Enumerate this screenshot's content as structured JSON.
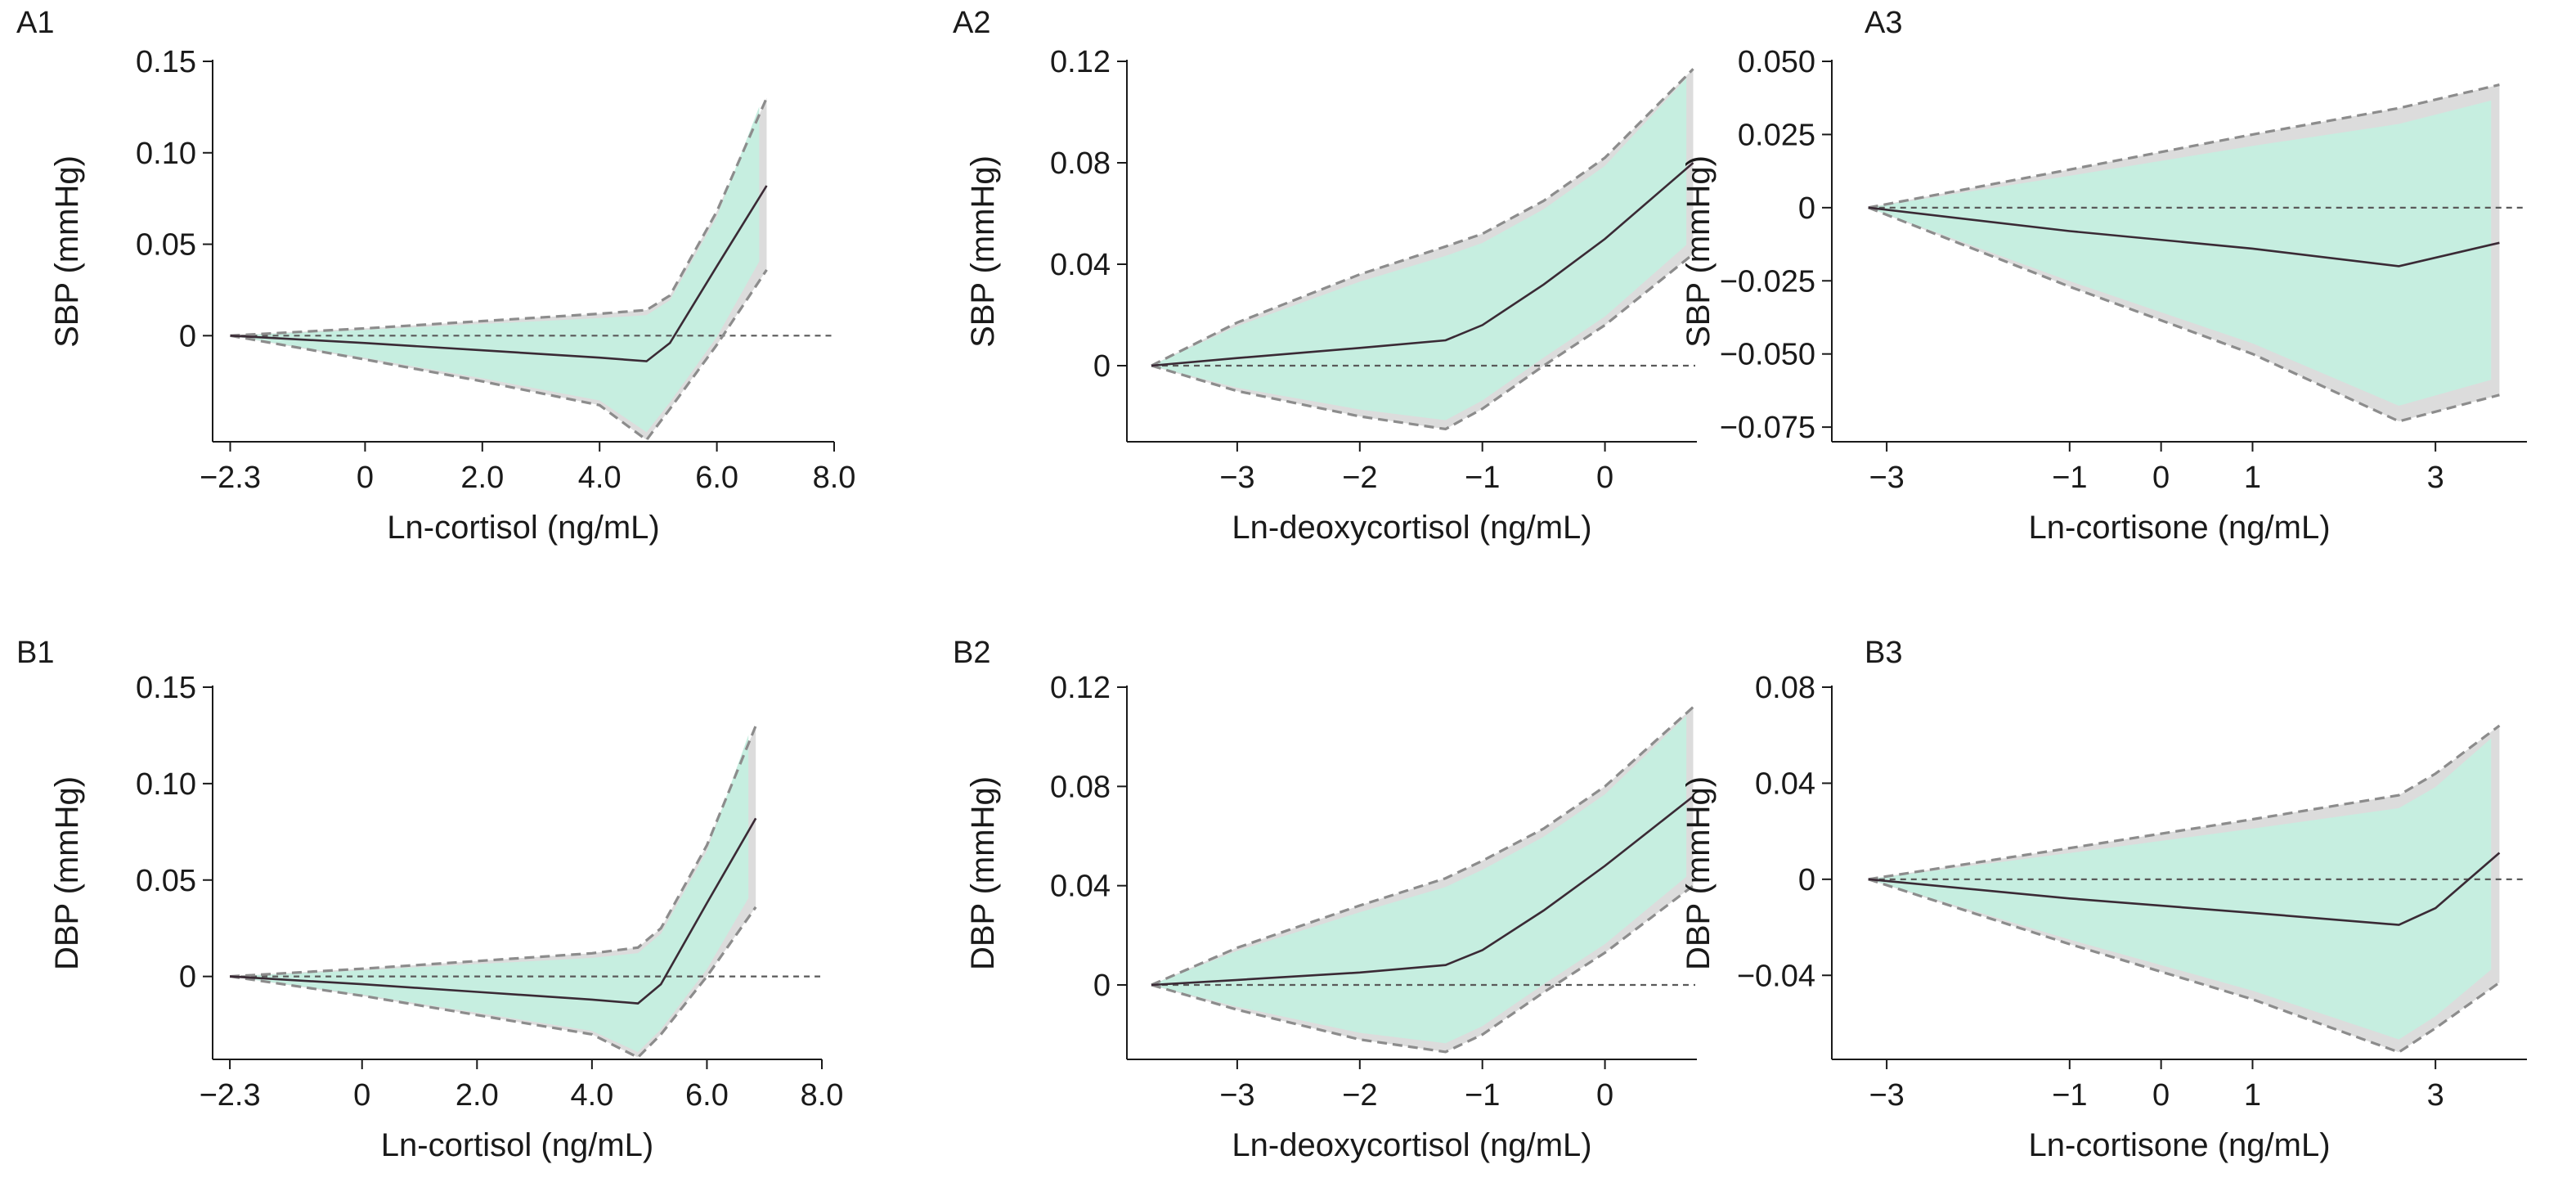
{
  "chart_data": [
    {
      "panel": "A1",
      "type": "line",
      "xlabel": "Ln-cortisol (ng/mL)",
      "ylabel": "SBP (mmHg)",
      "xlim": [
        -2.6,
        8.0
      ],
      "ylim": [
        -0.058,
        0.15
      ],
      "xticks": [
        -2.3,
        0,
        2,
        4,
        6,
        8
      ],
      "xtick_labels": [
        "−2.3",
        "0",
        "2.0",
        "4.0",
        "6.0",
        "8.0"
      ],
      "yticks": [
        0,
        0.05,
        0.1,
        0.15
      ],
      "ytick_labels": [
        "0",
        "0.05",
        "0.10",
        "0.15"
      ],
      "reference_y": 0,
      "x": [
        -2.3,
        0,
        2,
        4,
        4.8,
        5.2,
        6.0,
        6.85
      ],
      "estimate": [
        0,
        -0.004,
        -0.008,
        -0.012,
        -0.014,
        -0.004,
        0.038,
        0.082
      ],
      "lower": [
        0,
        -0.013,
        -0.025,
        -0.038,
        -0.057,
        -0.04,
        -0.005,
        0.036
      ],
      "upper": [
        0,
        0.004,
        0.008,
        0.012,
        0.014,
        0.022,
        0.068,
        0.13
      ]
    },
    {
      "panel": "A2",
      "type": "line",
      "xlabel": "Ln-deoxycortisol (ng/mL)",
      "ylabel": "SBP (mmHg)",
      "xlim": [
        -3.9,
        0.75
      ],
      "ylim": [
        -0.03,
        0.12
      ],
      "xticks": [
        -3,
        -2,
        -1,
        0
      ],
      "xtick_labels": [
        "−3",
        "−2",
        "−1",
        "0"
      ],
      "yticks": [
        0,
        0.04,
        0.08,
        0.12
      ],
      "ytick_labels": [
        "0",
        "0.04",
        "0.08",
        "0.12"
      ],
      "reference_y": 0,
      "x": [
        -3.7,
        -3,
        -2,
        -1.3,
        -1.0,
        -0.5,
        0,
        0.72
      ],
      "estimate": [
        0,
        0.003,
        0.007,
        0.01,
        0.016,
        0.032,
        0.05,
        0.08
      ],
      "lower": [
        0,
        -0.01,
        -0.02,
        -0.025,
        -0.017,
        0.0,
        0.016,
        0.044
      ],
      "upper": [
        0,
        0.017,
        0.036,
        0.047,
        0.052,
        0.065,
        0.082,
        0.117
      ]
    },
    {
      "panel": "A3",
      "type": "line",
      "xlabel": "Ln-cortisone (ng/mL)",
      "ylabel": "SBP (mmHg)",
      "xlim": [
        -3.6,
        4.0
      ],
      "ylim": [
        -0.08,
        0.05
      ],
      "xticks": [
        -3,
        -1,
        0,
        1,
        3
      ],
      "xtick_labels": [
        "−3",
        "−1",
        "0",
        "1",
        "3"
      ],
      "yticks": [
        -0.075,
        -0.05,
        -0.025,
        0,
        0.025,
        0.05
      ],
      "ytick_labels": [
        "−0.075",
        "−0.050",
        "−0.025",
        "0",
        "0.025",
        "0.050"
      ],
      "reference_y": 0,
      "x": [
        -3.2,
        -1,
        1,
        2.6,
        3.7
      ],
      "estimate": [
        0,
        -0.008,
        -0.014,
        -0.02,
        -0.012
      ],
      "lower": [
        0,
        -0.027,
        -0.05,
        -0.073,
        -0.064
      ],
      "upper": [
        0,
        0.013,
        0.025,
        0.034,
        0.042
      ]
    },
    {
      "panel": "B1",
      "type": "line",
      "xlabel": "Ln-cortisol (ng/mL)",
      "ylabel": "DBP (mmHg)",
      "xlim": [
        -2.6,
        8.0
      ],
      "ylim": [
        -0.043,
        0.15
      ],
      "xticks": [
        -2.3,
        0,
        2,
        4,
        6,
        8
      ],
      "xtick_labels": [
        "−2.3",
        "0",
        "2.0",
        "4.0",
        "6.0",
        "8.0"
      ],
      "yticks": [
        0,
        0.05,
        0.1,
        0.15
      ],
      "ytick_labels": [
        "0",
        "0.05",
        "0.10",
        "0.15"
      ],
      "reference_y": 0,
      "x": [
        -2.3,
        0,
        2,
        4,
        4.8,
        5.2,
        6.0,
        6.85
      ],
      "estimate": [
        0,
        -0.004,
        -0.008,
        -0.012,
        -0.014,
        -0.004,
        0.038,
        0.082
      ],
      "lower": [
        0,
        -0.01,
        -0.02,
        -0.03,
        -0.042,
        -0.03,
        0.0,
        0.036
      ],
      "upper": [
        0,
        0.004,
        0.008,
        0.012,
        0.015,
        0.025,
        0.068,
        0.13
      ]
    },
    {
      "panel": "B2",
      "type": "line",
      "xlabel": "Ln-deoxycortisol (ng/mL)",
      "ylabel": "DBP (mmHg)",
      "xlim": [
        -3.9,
        0.75
      ],
      "ylim": [
        -0.03,
        0.12
      ],
      "xticks": [
        -3,
        -2,
        -1,
        0
      ],
      "xtick_labels": [
        "−3",
        "−2",
        "−1",
        "0"
      ],
      "yticks": [
        0,
        0.04,
        0.08,
        0.12
      ],
      "ytick_labels": [
        "0",
        "0.04",
        "0.08",
        "0.12"
      ],
      "reference_y": 0,
      "x": [
        -3.7,
        -3,
        -2,
        -1.3,
        -1.0,
        -0.5,
        0,
        0.72
      ],
      "estimate": [
        0,
        0.002,
        0.005,
        0.008,
        0.014,
        0.03,
        0.048,
        0.076
      ],
      "lower": [
        0,
        -0.01,
        -0.022,
        -0.027,
        -0.02,
        -0.003,
        0.013,
        0.04
      ],
      "upper": [
        0,
        0.015,
        0.032,
        0.043,
        0.05,
        0.063,
        0.08,
        0.112
      ]
    },
    {
      "panel": "B3",
      "type": "line",
      "xlabel": "Ln-cortisone (ng/mL)",
      "ylabel": "DBP (mmHg)",
      "xlim": [
        -3.6,
        4.0
      ],
      "ylim": [
        -0.075,
        0.08
      ],
      "xticks": [
        -3,
        -1,
        0,
        1,
        3
      ],
      "xtick_labels": [
        "−3",
        "−1",
        "0",
        "1",
        "3"
      ],
      "yticks": [
        -0.04,
        0,
        0.04,
        0.08
      ],
      "ytick_labels": [
        "−0.04",
        "0",
        "0.04",
        "0.08"
      ],
      "reference_y": 0,
      "x": [
        -3.2,
        -1,
        1,
        2.6,
        3.0,
        3.7
      ],
      "estimate": [
        0,
        -0.008,
        -0.014,
        -0.019,
        -0.012,
        0.011
      ],
      "lower": [
        0,
        -0.027,
        -0.05,
        -0.072,
        -0.062,
        -0.043
      ],
      "upper": [
        0,
        0.013,
        0.025,
        0.035,
        0.044,
        0.064
      ]
    }
  ],
  "colors": {
    "ci_fill": "#c6eee0",
    "ci_outer": "#dcdcdc",
    "ci_bound": "#8c8c8c",
    "estimate_line": "#3a2a35",
    "reference_line": "#5a5a5a",
    "axis": "#1a1a1a"
  }
}
